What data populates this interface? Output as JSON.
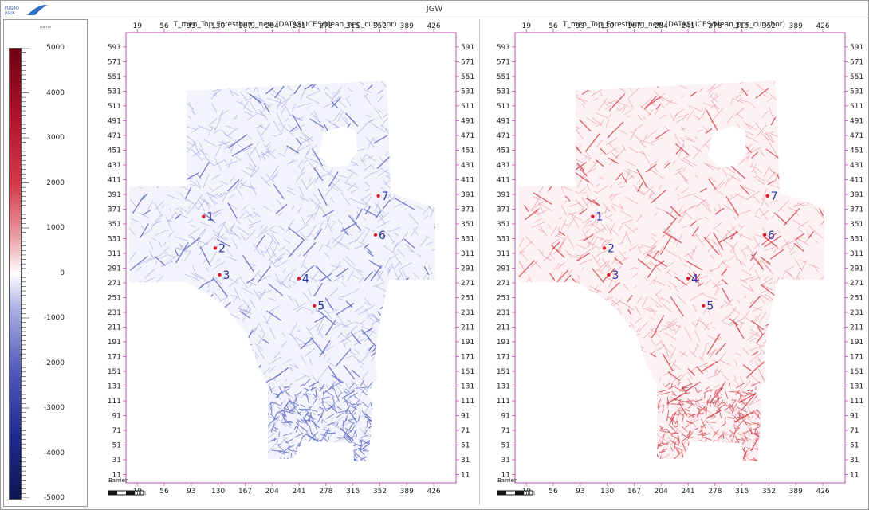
{
  "window": {
    "title": "JGW",
    "logo_icon": "company-logo-icon"
  },
  "colorbar": {
    "title": "name",
    "labels": [
      "5000",
      "4000",
      "3000",
      "2000",
      "1000",
      "0",
      "-1000",
      "-2000",
      "-3000",
      "-4000",
      "-5000"
    ],
    "min": -5000,
    "max": 5000,
    "colors": {
      "top": "#6e0010",
      "mid": "#ffffff",
      "bottom": "#0d1550"
    }
  },
  "axes": {
    "x_ticks": [
      "19",
      "56",
      "93",
      "130",
      "167",
      "204",
      "241",
      "278",
      "315",
      "352",
      "389",
      "426"
    ],
    "y_ticks": [
      "591",
      "571",
      "551",
      "531",
      "511",
      "491",
      "471",
      "451",
      "431",
      "411",
      "391",
      "371",
      "351",
      "331",
      "311",
      "291",
      "271",
      "251",
      "231",
      "211",
      "191",
      "171",
      "151",
      "131",
      "111",
      "91",
      "71",
      "51",
      "31",
      "11"
    ],
    "x_range": [
      10,
      450
    ],
    "y_range": [
      4,
      606
    ]
  },
  "panels": [
    {
      "title": "T_men_Top_Forestburg_new (DATASLICES/Mean_neg_curv.hor)",
      "fill_color": "#3a46b5",
      "wells": [
        {
          "label": "1",
          "x": 110,
          "y": 361
        },
        {
          "label": "2",
          "x": 126,
          "y": 318
        },
        {
          "label": "3",
          "x": 132,
          "y": 282
        },
        {
          "label": "4",
          "x": 241,
          "y": 277
        },
        {
          "label": "5",
          "x": 262,
          "y": 240
        },
        {
          "label": "6",
          "x": 346,
          "y": 336
        },
        {
          "label": "7",
          "x": 350,
          "y": 389
        }
      ],
      "barrier_label": "Barrier",
      "scale_label": "5000 ft"
    },
    {
      "title": "T_men_Top_Forestburg_new (DATASLICES/Mean_pos_curv.hor)",
      "fill_color": "#c8202c",
      "wells": [
        {
          "label": "1",
          "x": 110,
          "y": 361
        },
        {
          "label": "2",
          "x": 126,
          "y": 318
        },
        {
          "label": "3",
          "x": 132,
          "y": 282
        },
        {
          "label": "4",
          "x": 241,
          "y": 277
        },
        {
          "label": "5",
          "x": 262,
          "y": 240
        },
        {
          "label": "6",
          "x": 346,
          "y": 336
        },
        {
          "label": "7",
          "x": 350,
          "y": 389
        }
      ],
      "barrier_label": "Barrier",
      "scale_label": "5000 ft"
    }
  ],
  "well_marker_color": "#e0182a",
  "well_label_color": "#2a36a8",
  "axis_color": "#c14fb8"
}
